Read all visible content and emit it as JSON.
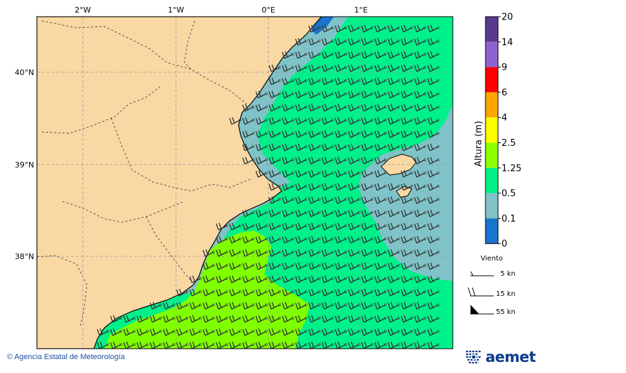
{
  "map": {
    "lon_labels": [
      "2°W",
      "1°W",
      "0°E",
      "1°E"
    ],
    "lat_labels": [
      "40°N",
      "39°N",
      "38°N"
    ]
  },
  "colorbar": {
    "axis_label": "Altura (m)",
    "ticks": [
      "20",
      "14",
      "9",
      "6",
      "4",
      "2.5",
      "1.25",
      "0.5",
      "0.1",
      "0"
    ],
    "colors": [
      "#5b3a8e",
      "#8e63cf",
      "#ff0000",
      "#ffa500",
      "#ffff00",
      "#8fff00",
      "#00f08a",
      "#7fc3c8",
      "#1874cd"
    ]
  },
  "legend": {
    "title": "Viento",
    "items": [
      "5 kn",
      "15 kn",
      "55 kn"
    ]
  },
  "footer": {
    "copyright": "© Agencia Estatal de Meteorología",
    "logo_text": "aemet"
  },
  "colors": {
    "land": "#f9d8a4",
    "sea_green": "#00f08a",
    "sea_lime": "#7fff00",
    "sea_teal": "#7fc3c8",
    "sea_blue": "#1874cd"
  }
}
